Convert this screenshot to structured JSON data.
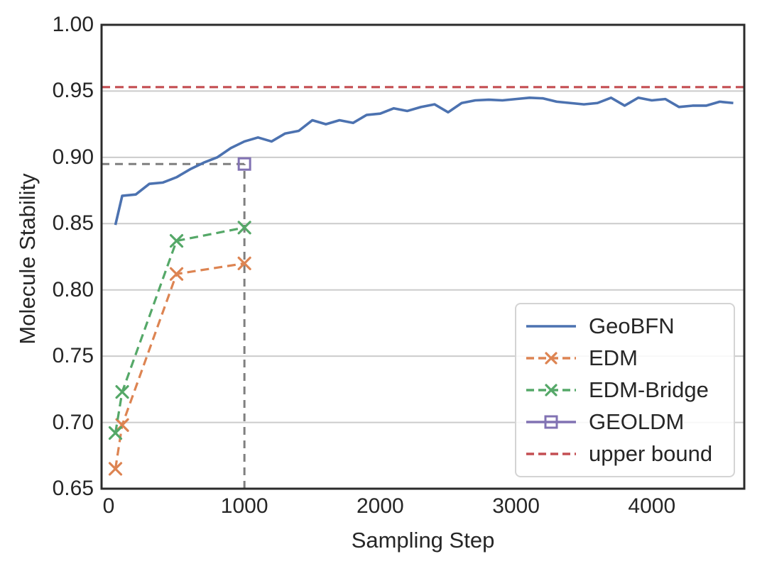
{
  "figure": {
    "background": "#ffffff",
    "text_color": "#262626",
    "grid_color": "#cccccc",
    "spine_color": "#2b2b2b"
  },
  "chart_data": {
    "type": "line",
    "title": "",
    "xlabel": "Sampling Step",
    "ylabel": "Molecule Stability",
    "xlim": [
      -52,
      4681
    ],
    "ylim": [
      0.65,
      1.0
    ],
    "grid": "horizontal-only",
    "legend_position": "lower right",
    "x_ticks": [
      {
        "value": 0,
        "label": "0"
      },
      {
        "value": 1000,
        "label": "1000"
      },
      {
        "value": 2000,
        "label": "2000"
      },
      {
        "value": 3000,
        "label": "3000"
      },
      {
        "value": 4000,
        "label": "4000"
      }
    ],
    "y_ticks": [
      {
        "value": 0.65,
        "label": "0.65"
      },
      {
        "value": 0.7,
        "label": "0.70"
      },
      {
        "value": 0.75,
        "label": "0.75"
      },
      {
        "value": 0.8,
        "label": "0.80"
      },
      {
        "value": 0.85,
        "label": "0.85"
      },
      {
        "value": 0.9,
        "label": "0.90"
      },
      {
        "value": 0.95,
        "label": "0.95"
      },
      {
        "value": 1.0,
        "label": "1.00"
      }
    ],
    "series": [
      {
        "name": "upper bound",
        "color": "#c44e52",
        "line_style": "dashed",
        "marker": "none",
        "points": [
          [
            -52,
            0.953
          ],
          [
            4681,
            0.953
          ]
        ]
      },
      {
        "name": "EDM",
        "color": "#dd8452",
        "line_style": "dashed",
        "marker": "x",
        "points": [
          [
            50,
            0.665
          ],
          [
            100,
            0.698
          ],
          [
            500,
            0.812
          ],
          [
            1000,
            0.82
          ]
        ]
      },
      {
        "name": "EDM-Bridge",
        "color": "#55a868",
        "line_style": "dashed",
        "marker": "x",
        "points": [
          [
            50,
            0.692
          ],
          [
            100,
            0.723
          ],
          [
            500,
            0.837
          ],
          [
            1000,
            0.847
          ]
        ]
      },
      {
        "name": "GeoBFN",
        "color": "#4c72b0",
        "line_style": "solid",
        "marker": "none",
        "points": [
          [
            50,
            0.849
          ],
          [
            100,
            0.871
          ],
          [
            200,
            0.872
          ],
          [
            300,
            0.88
          ],
          [
            400,
            0.881
          ],
          [
            500,
            0.885
          ],
          [
            600,
            0.891
          ],
          [
            700,
            0.896
          ],
          [
            800,
            0.9
          ],
          [
            900,
            0.907
          ],
          [
            1000,
            0.912
          ],
          [
            1100,
            0.915
          ],
          [
            1200,
            0.912
          ],
          [
            1300,
            0.918
          ],
          [
            1400,
            0.92
          ],
          [
            1500,
            0.928
          ],
          [
            1600,
            0.925
          ],
          [
            1700,
            0.928
          ],
          [
            1800,
            0.926
          ],
          [
            1900,
            0.932
          ],
          [
            2000,
            0.933
          ],
          [
            2100,
            0.937
          ],
          [
            2200,
            0.935
          ],
          [
            2300,
            0.938
          ],
          [
            2400,
            0.94
          ],
          [
            2500,
            0.934
          ],
          [
            2600,
            0.941
          ],
          [
            2700,
            0.943
          ],
          [
            2800,
            0.9435
          ],
          [
            2900,
            0.943
          ],
          [
            3000,
            0.944
          ],
          [
            3100,
            0.945
          ],
          [
            3200,
            0.9445
          ],
          [
            3300,
            0.942
          ],
          [
            3400,
            0.941
          ],
          [
            3500,
            0.94
          ],
          [
            3600,
            0.941
          ],
          [
            3700,
            0.945
          ],
          [
            3800,
            0.939
          ],
          [
            3900,
            0.945
          ],
          [
            4000,
            0.943
          ],
          [
            4100,
            0.944
          ],
          [
            4200,
            0.938
          ],
          [
            4300,
            0.939
          ],
          [
            4400,
            0.939
          ],
          [
            4500,
            0.942
          ],
          [
            4600,
            0.941
          ]
        ]
      },
      {
        "name": "GEOLDM",
        "color": "#8172b3",
        "line_style": "solid",
        "marker": "square",
        "points": [
          [
            1000,
            0.895
          ]
        ]
      }
    ],
    "legend_order": [
      "GeoBFN",
      "EDM",
      "EDM-Bridge",
      "GEOLDM",
      "upper bound"
    ],
    "guides": {
      "color": "#7f7f7f",
      "horizontal": {
        "y": 0.895,
        "x_from": -52,
        "x_to": 1000
      },
      "vertical": {
        "x": 1000,
        "y_from": 0.65,
        "y_to": 0.895
      }
    }
  }
}
